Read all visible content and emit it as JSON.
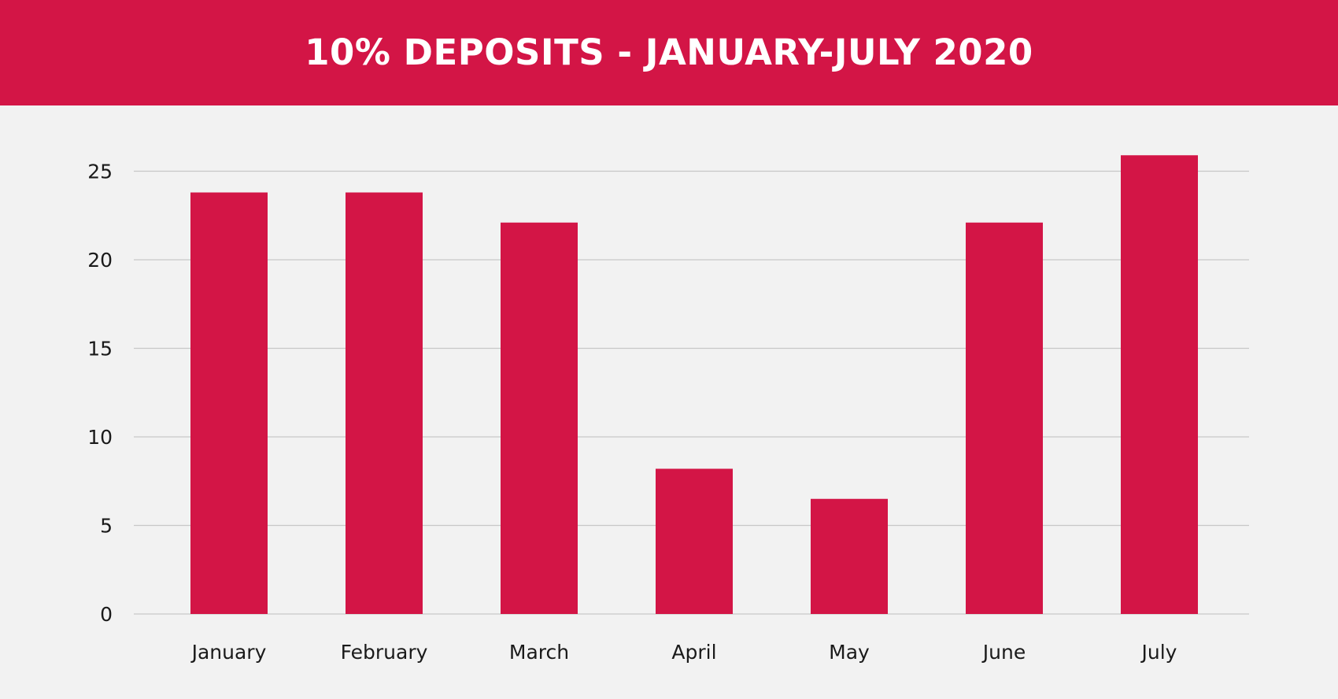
{
  "colors": {
    "banner": "#d31546",
    "bar": "#d31546",
    "background": "#f2f2f2",
    "title_text": "#ffffff",
    "grid": "#c8c8c8",
    "axis_text": "#1a1a1a"
  },
  "chart_data": {
    "type": "bar",
    "title": "10% DEPOSITS - JANUARY-JULY 2020",
    "xlabel": "",
    "ylabel": "",
    "categories": [
      "January",
      "February",
      "March",
      "April",
      "May",
      "June",
      "July"
    ],
    "values": [
      23.8,
      23.8,
      22.1,
      8.2,
      6.5,
      22.1,
      25.9
    ],
    "ylim": [
      0,
      25
    ],
    "yticks": [
      0,
      5,
      10,
      15,
      20,
      25
    ],
    "grid": true,
    "legend": "none"
  }
}
